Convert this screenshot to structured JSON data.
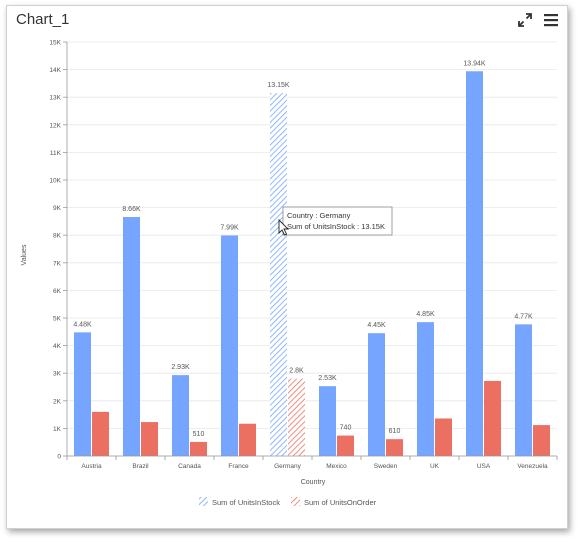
{
  "widget": {
    "title": "Chart_1",
    "toolbar": {
      "maximize_icon": "expand-arrows-icon",
      "menu_icon": "hamburger-menu-icon"
    }
  },
  "colors": {
    "series1": "#75a5ff",
    "series2": "#ec7062",
    "axis": "#999999",
    "grid": "#e8e8e8",
    "text": "#555555"
  },
  "tooltip": {
    "line1": "Country : Germany",
    "line2": "Sum of UnitsInStock : 13.15K"
  },
  "chart_data": {
    "type": "bar",
    "xlabel": "Country",
    "ylabel": "Values",
    "ylim": [
      0,
      15000
    ],
    "yticks": [
      0,
      1000,
      2000,
      3000,
      4000,
      5000,
      6000,
      7000,
      8000,
      9000,
      10000,
      11000,
      12000,
      13000,
      14000,
      15000
    ],
    "ytick_labels": [
      "0",
      "1K",
      "2K",
      "3K",
      "4K",
      "5K",
      "6K",
      "7K",
      "8K",
      "9K",
      "10K",
      "11K",
      "12K",
      "13K",
      "14K",
      "15K"
    ],
    "categories": [
      "Austria",
      "Brazil",
      "Canada",
      "France",
      "Germany",
      "Mexico",
      "Sweden",
      "UK",
      "USA",
      "Venezuela"
    ],
    "highlighted_category": "Germany",
    "legend_position": "bottom",
    "grid": true,
    "series": [
      {
        "name": "Sum of UnitsInStock",
        "values": [
          4480,
          8660,
          2930,
          7990,
          13150,
          2530,
          4450,
          4850,
          13940,
          4770
        ],
        "labels": [
          "4.48K",
          "8.66K",
          "2.93K",
          "7.99K",
          "13.15K",
          "2.53K",
          "4.45K",
          "4.85K",
          "13.94K",
          "4.77K"
        ]
      },
      {
        "name": "Sum of UnitsOnOrder",
        "values": [
          1600,
          1230,
          510,
          1170,
          2800,
          740,
          610,
          1360,
          2720,
          1120
        ],
        "labels": [
          "",
          "",
          "510",
          "",
          "2.8K",
          "740",
          "610",
          "",
          "",
          ""
        ]
      }
    ]
  }
}
